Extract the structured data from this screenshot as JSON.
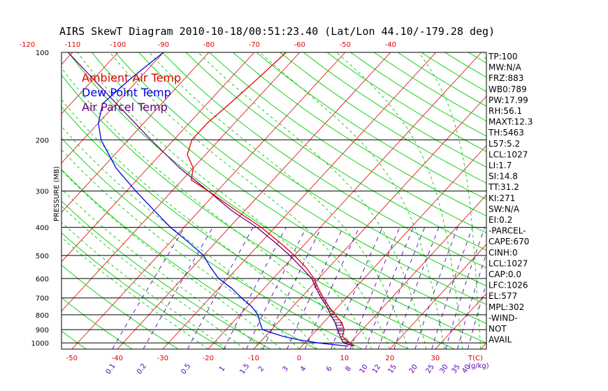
{
  "colors": {
    "ambient": "#dd0000",
    "dewpoint": "#0000ee",
    "parcel": "#6a0080",
    "dry_adiabat": "#00cc00",
    "moist_adiabat": "#00cc00",
    "mixing_ratio": "#5a00b0",
    "isotherm": "#dd0000",
    "axis": "#000000"
  },
  "chart_data": {
    "type": "line",
    "title": "AIRS SkewT Diagram 2010-10-18/00:51:23.40 (Lat/Lon 44.10/-179.28 deg)",
    "ylabel": "PRESSURE (MB)",
    "xlabel": "T(C)",
    "mixing_label": "(g/kg)",
    "p_ticks": [
      "100",
      "200",
      "300",
      "400",
      "500",
      "600",
      "700",
      "800",
      "900",
      "1000"
    ],
    "p_values": [
      100,
      200,
      300,
      400,
      500,
      600,
      700,
      800,
      900,
      1000
    ],
    "ylim": [
      100,
      1050
    ],
    "top_temp_ticks": [
      "-120",
      "-110",
      "-100",
      "-90",
      "-80",
      "-70",
      "-60",
      "-50",
      "-40"
    ],
    "top_temp_values": [
      -120,
      -110,
      -100,
      -90,
      -80,
      -70,
      -60,
      -50,
      -40
    ],
    "bottom_temp_ticks": [
      "-50",
      "-40",
      "-30",
      "-20",
      "-10",
      "0",
      "10",
      "20",
      "30"
    ],
    "bottom_temp_values": [
      -50,
      -40,
      -30,
      -20,
      -10,
      0,
      10,
      20,
      30
    ],
    "mixing_ratio_ticks": [
      "0.1",
      "0.2",
      "0.5",
      "1",
      "1.5",
      "2",
      "3",
      "4",
      "6",
      "8",
      "10",
      "12",
      "15",
      "20",
      "25",
      "30",
      "35",
      "40"
    ],
    "mixing_ratio_values": [
      0.1,
      0.2,
      0.5,
      1,
      1.5,
      2,
      3,
      4,
      6,
      8,
      10,
      12,
      15,
      20,
      25,
      30,
      35,
      40
    ],
    "legend": [
      "Ambient Air Temp",
      "Dew Point Temp",
      "Air Parcel Temp"
    ],
    "series": [
      {
        "name": "Ambient Air Temp",
        "pressure": [
          1025,
          1000,
          950,
          900,
          850,
          800,
          750,
          700,
          650,
          600,
          550,
          500,
          450,
          400,
          350,
          300,
          275,
          250,
          225,
          200,
          175,
          150,
          125,
          100
        ],
        "temp": [
          11.5,
          10,
          7,
          6,
          4,
          1,
          -2,
          -5,
          -8,
          -11,
          -15,
          -20,
          -26,
          -33,
          -42,
          -52,
          -58,
          -60,
          -64,
          -66,
          -66,
          -65,
          -64,
          -63
        ]
      },
      {
        "name": "Dew Point Temp",
        "pressure": [
          1025,
          1000,
          975,
          950,
          925,
          900,
          850,
          800,
          750,
          700,
          650,
          600,
          550,
          500,
          450,
          400,
          350,
          300,
          250,
          200,
          175,
          150,
          125,
          100
        ],
        "dewpoint": [
          10,
          3,
          -2,
          -6,
          -9,
          -12,
          -14,
          -16,
          -19,
          -23,
          -27,
          -32,
          -36,
          -40,
          -46,
          -53,
          -60,
          -68,
          -77,
          -86,
          -90,
          -93,
          -92,
          -90
        ]
      },
      {
        "name": "Air Parcel Temp",
        "pressure": [
          1025,
          1000,
          950,
          900,
          850,
          800,
          750,
          700,
          650,
          600,
          550,
          500,
          450,
          400,
          350,
          300,
          250,
          200,
          150,
          100
        ],
        "temp": [
          11.5,
          8.5,
          6.5,
          4.5,
          2.5,
          0,
          -2.5,
          -5.5,
          -8.5,
          -11.5,
          -16,
          -21,
          -27,
          -34,
          -43,
          -52,
          -63,
          -75,
          -90,
          -111
        ]
      }
    ],
    "cape_shading": "between parcel and ambient, 1000-600 mb"
  },
  "indices": [
    "TP:100",
    "MW:N/A",
    "FRZ:883",
    "WB0:789",
    "PW:17.99",
    "RH:56.1",
    "MAXT:12.3",
    "TH:5463",
    "L57:5.2",
    "LCL:1027",
    "LI:1.7",
    "SI:14.8",
    "TT:31.2",
    "KI:271",
    "SW:N/A",
    "EI:0.2",
    "-PARCEL-",
    "CAPE:670",
    "CINH:0",
    "LCL:1027",
    "CAP:0.0",
    "LFC:1026",
    "EL:577",
    "MPL:302",
    "-WIND-",
    "NOT",
    "AVAIL"
  ]
}
